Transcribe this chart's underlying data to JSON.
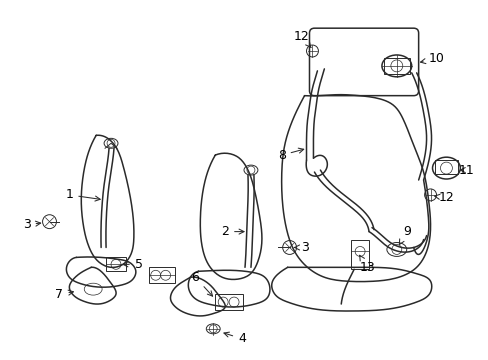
{
  "bg_color": "#ffffff",
  "line_color": "#2a2a2a",
  "label_color": "#000000",
  "lw_main": 1.1,
  "lw_thin": 0.7,
  "lw_detail": 0.5
}
